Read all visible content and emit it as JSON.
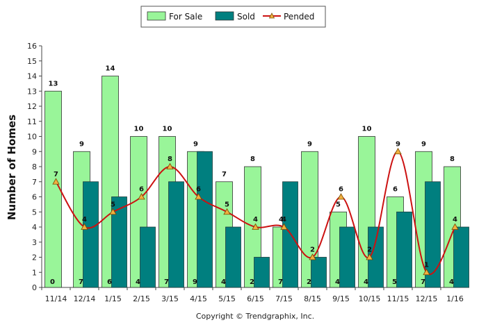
{
  "chart_data": {
    "type": "bar",
    "categories": [
      "11/14",
      "12/14",
      "1/15",
      "2/15",
      "3/15",
      "4/15",
      "5/15",
      "6/15",
      "7/15",
      "8/15",
      "9/15",
      "10/15",
      "11/15",
      "12/15",
      "1/16"
    ],
    "series": [
      {
        "name": "For Sale",
        "type": "bar",
        "color": "#99f599",
        "values": [
          13,
          9,
          14,
          10,
          10,
          9,
          7,
          8,
          4,
          9,
          5,
          10,
          6,
          9,
          8
        ]
      },
      {
        "name": "Sold",
        "type": "bar",
        "color": "#007f7f",
        "values": [
          0,
          7,
          6,
          4,
          7,
          9,
          4,
          2,
          7,
          2,
          4,
          4,
          5,
          7,
          4
        ]
      },
      {
        "name": "Pended",
        "type": "line",
        "color": "#cc1111",
        "marker_color": "#f0b040",
        "values": [
          7,
          4,
          5,
          6,
          8,
          6,
          5,
          4,
          4,
          2,
          6,
          2,
          9,
          1,
          4
        ]
      }
    ],
    "ylabel": "Number of Homes",
    "xlabel": "",
    "ylim": [
      0,
      16
    ],
    "yticks": [
      0,
      1,
      2,
      3,
      4,
      5,
      6,
      7,
      8,
      9,
      10,
      11,
      12,
      13,
      14,
      15,
      16
    ],
    "legend": "top-center",
    "grid": false,
    "footer": "Copyright © Trendgraphix, Inc."
  }
}
